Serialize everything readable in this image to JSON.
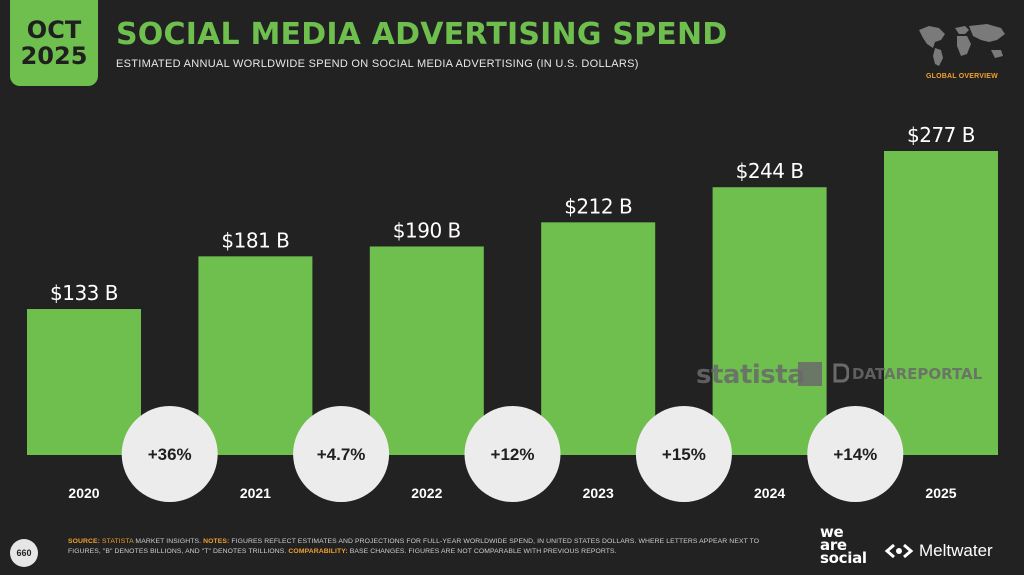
{
  "header": {
    "month": "OCT",
    "year": "2025",
    "title": "SOCIAL MEDIA ADVERTISING SPEND",
    "subtitle": "ESTIMATED ANNUAL WORLDWIDE SPEND ON SOCIAL MEDIA ADVERTISING (IN U.S. DOLLARS)",
    "badge": "GLOBAL OVERVIEW"
  },
  "colors": {
    "accent": "#6fbf4f",
    "background": "#222222",
    "highlight": "#f0a030",
    "circle": "#ececec"
  },
  "chart_data": {
    "type": "bar",
    "categories": [
      "2020",
      "2021",
      "2022",
      "2023",
      "2024",
      "2025"
    ],
    "values": [
      133,
      181,
      190,
      212,
      244,
      277
    ],
    "value_labels": [
      "$133 B",
      "$181 B",
      "$190 B",
      "$212 B",
      "$244 B",
      "$277 B"
    ],
    "changes": [
      "+36%",
      "+4.7%",
      "+12%",
      "+15%",
      "+14%"
    ],
    "ylim": [
      0,
      277
    ]
  },
  "watermarks": {
    "statista": "statista",
    "datareportal": "DATAREPORTAL"
  },
  "footer": {
    "page": "660",
    "source_key": "SOURCE:",
    "source_name": "STATISTA",
    "source_rest": " MARKET INSIGHTS.",
    "notes_key": "NOTES:",
    "notes_text": " FIGURES REFLECT ESTIMATES AND PROJECTIONS FOR FULL-YEAR WORLDWIDE SPEND, IN UNITED STATES DOLLARS. WHERE LETTERS APPEAR NEXT TO FIGURES, \"B\" DENOTES BILLIONS, AND \"T\" DENOTES TRILLIONS.",
    "comp_key": "COMPARABILITY:",
    "comp_text": " BASE CHANGES. FIGURES ARE NOT COMPARABLE WITH PREVIOUS REPORTS."
  },
  "brands": {
    "we": "we",
    "are": "are",
    "social": "social",
    "meltwater": "Meltwater"
  }
}
